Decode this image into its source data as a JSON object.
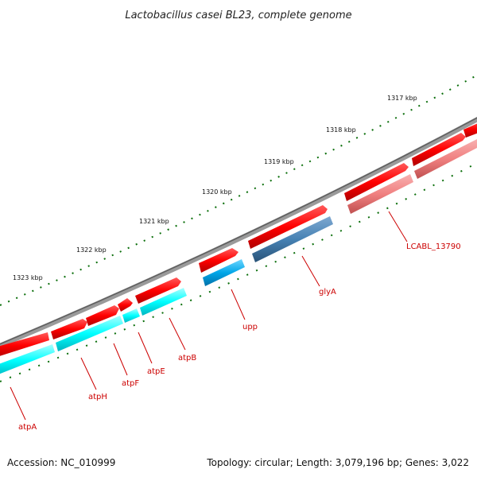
{
  "title": "Lactobacillus casei BL23, complete genome",
  "footer": {
    "accession": "Accession: NC_010999",
    "summary": "Topology: circular; Length: 3,079,196 bp; Genes: 3,022"
  },
  "kbp_labels": [
    "1317 kbp",
    "1318 kbp",
    "1319 kbp",
    "1320 kbp",
    "1321 kbp",
    "1322 kbp",
    "1323 kbp"
  ],
  "gene_labels": [
    "LCABL_13790",
    "glyA",
    "upp",
    "atpB",
    "atpE",
    "atpF",
    "atpH",
    "atpA"
  ],
  "colors": {
    "backbone": "#888888",
    "gene_forward": "#ff0000",
    "gene_light": "#f08080",
    "cds_cyan": "#00ffff",
    "cds_mid_blue": "#00a6e8",
    "cds_steel_blue": "#4682b4",
    "ticks": "#006400",
    "label": "#cc0000"
  }
}
